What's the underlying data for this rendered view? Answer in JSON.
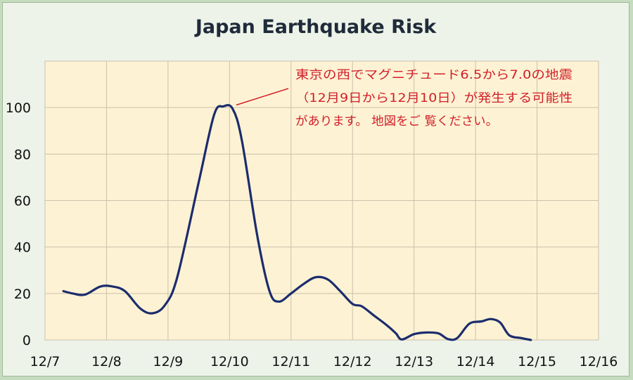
{
  "chart_data": {
    "type": "line",
    "title": "Japan Earthquake Risk",
    "xlabel": "",
    "ylabel": "",
    "x_tick_labels": [
      "12/7",
      "12/8",
      "12/9",
      "12/10",
      "12/11",
      "12/12",
      "12/13",
      "12/14",
      "12/15",
      "12/16"
    ],
    "y_tick_labels": [
      "0",
      "20",
      "40",
      "60",
      "80",
      "100"
    ],
    "xlim": [
      0,
      9
    ],
    "ylim": [
      0,
      120
    ],
    "grid": true,
    "legend": "none",
    "series": [
      {
        "color": "#1c2c6e",
        "points": [
          [
            0.3,
            21
          ],
          [
            0.45,
            20
          ],
          [
            0.65,
            19.5
          ],
          [
            0.9,
            23
          ],
          [
            1.1,
            23
          ],
          [
            1.3,
            21
          ],
          [
            1.55,
            13.5
          ],
          [
            1.75,
            11.5
          ],
          [
            1.95,
            15
          ],
          [
            2.15,
            27
          ],
          [
            2.5,
            68
          ],
          [
            2.75,
            97
          ],
          [
            2.9,
            100.5
          ],
          [
            3.05,
            99.5
          ],
          [
            3.2,
            86
          ],
          [
            3.45,
            45
          ],
          [
            3.65,
            21
          ],
          [
            3.8,
            16.5
          ],
          [
            4.0,
            20
          ],
          [
            4.2,
            24
          ],
          [
            4.4,
            27
          ],
          [
            4.6,
            26
          ],
          [
            4.8,
            21
          ],
          [
            5.0,
            15.5
          ],
          [
            5.15,
            14.5
          ],
          [
            5.35,
            10.5
          ],
          [
            5.55,
            6.5
          ],
          [
            5.7,
            3
          ],
          [
            5.8,
            0.2
          ],
          [
            6.0,
            2.5
          ],
          [
            6.2,
            3.2
          ],
          [
            6.4,
            2.8
          ],
          [
            6.55,
            0.4
          ],
          [
            6.7,
            0.8
          ],
          [
            6.9,
            7
          ],
          [
            7.1,
            8
          ],
          [
            7.25,
            9
          ],
          [
            7.4,
            7.5
          ],
          [
            7.55,
            2
          ],
          [
            7.75,
            0.8
          ],
          [
            7.9,
            0
          ]
        ]
      }
    ],
    "annotation": {
      "lines": [
        "東京の西でマグニチュード6.5から7.0の地震",
        "（12月9日から12月10日）が発生する可能性",
        "があります。 地図をご 覧ください。"
      ],
      "point": [
        2.95,
        100.5
      ],
      "color": "#d21f2a"
    },
    "colors": {
      "plot_background": "#fdf2d3",
      "grid": "#c9c2ad",
      "frame_background": "#eef3e9",
      "border": "#c6dcbf"
    }
  }
}
